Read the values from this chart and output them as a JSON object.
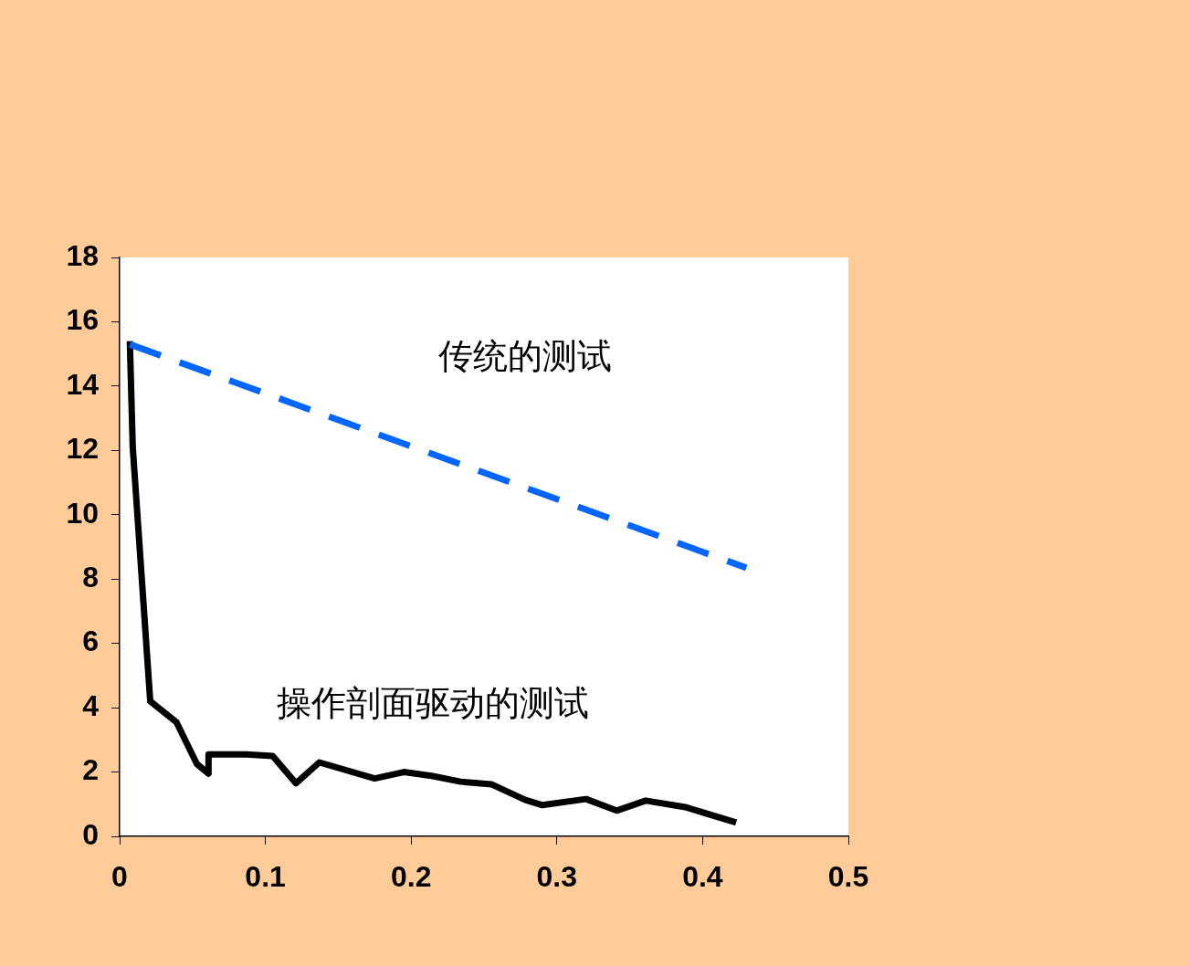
{
  "chart_data": {
    "type": "line",
    "xlim": [
      0,
      0.5
    ],
    "xticks": [
      0,
      0.1,
      0.2,
      0.3,
      0.4,
      0.5
    ],
    "ylim": [
      0,
      18
    ],
    "yticks": [
      0,
      2,
      4,
      6,
      8,
      10,
      12,
      14,
      16,
      18
    ],
    "grid": false,
    "legend": false,
    "marker": "none",
    "series": [
      {
        "name": "传统的测试",
        "color": "#0066ff",
        "line_style": "dashed",
        "x": [
          0.007,
          0.43
        ],
        "values": [
          15.3,
          8.35
        ]
      },
      {
        "name": "操作剖面驱动的测试",
        "color": "#000000",
        "line_style": "solid",
        "x": [
          0.007,
          0.009,
          0.021,
          0.039,
          0.053,
          0.061,
          0.061,
          0.087,
          0.105,
          0.121,
          0.137,
          0.175,
          0.195,
          0.214,
          0.234,
          0.255,
          0.278,
          0.29,
          0.32,
          0.341,
          0.361,
          0.388,
          0.423
        ],
        "values": [
          15.4,
          12.1,
          4.2,
          3.55,
          2.25,
          1.95,
          2.55,
          2.55,
          2.5,
          1.65,
          2.3,
          1.8,
          2.0,
          1.88,
          1.7,
          1.62,
          1.14,
          0.97,
          1.16,
          0.8,
          1.11,
          0.91,
          0.43
        ]
      }
    ]
  }
}
